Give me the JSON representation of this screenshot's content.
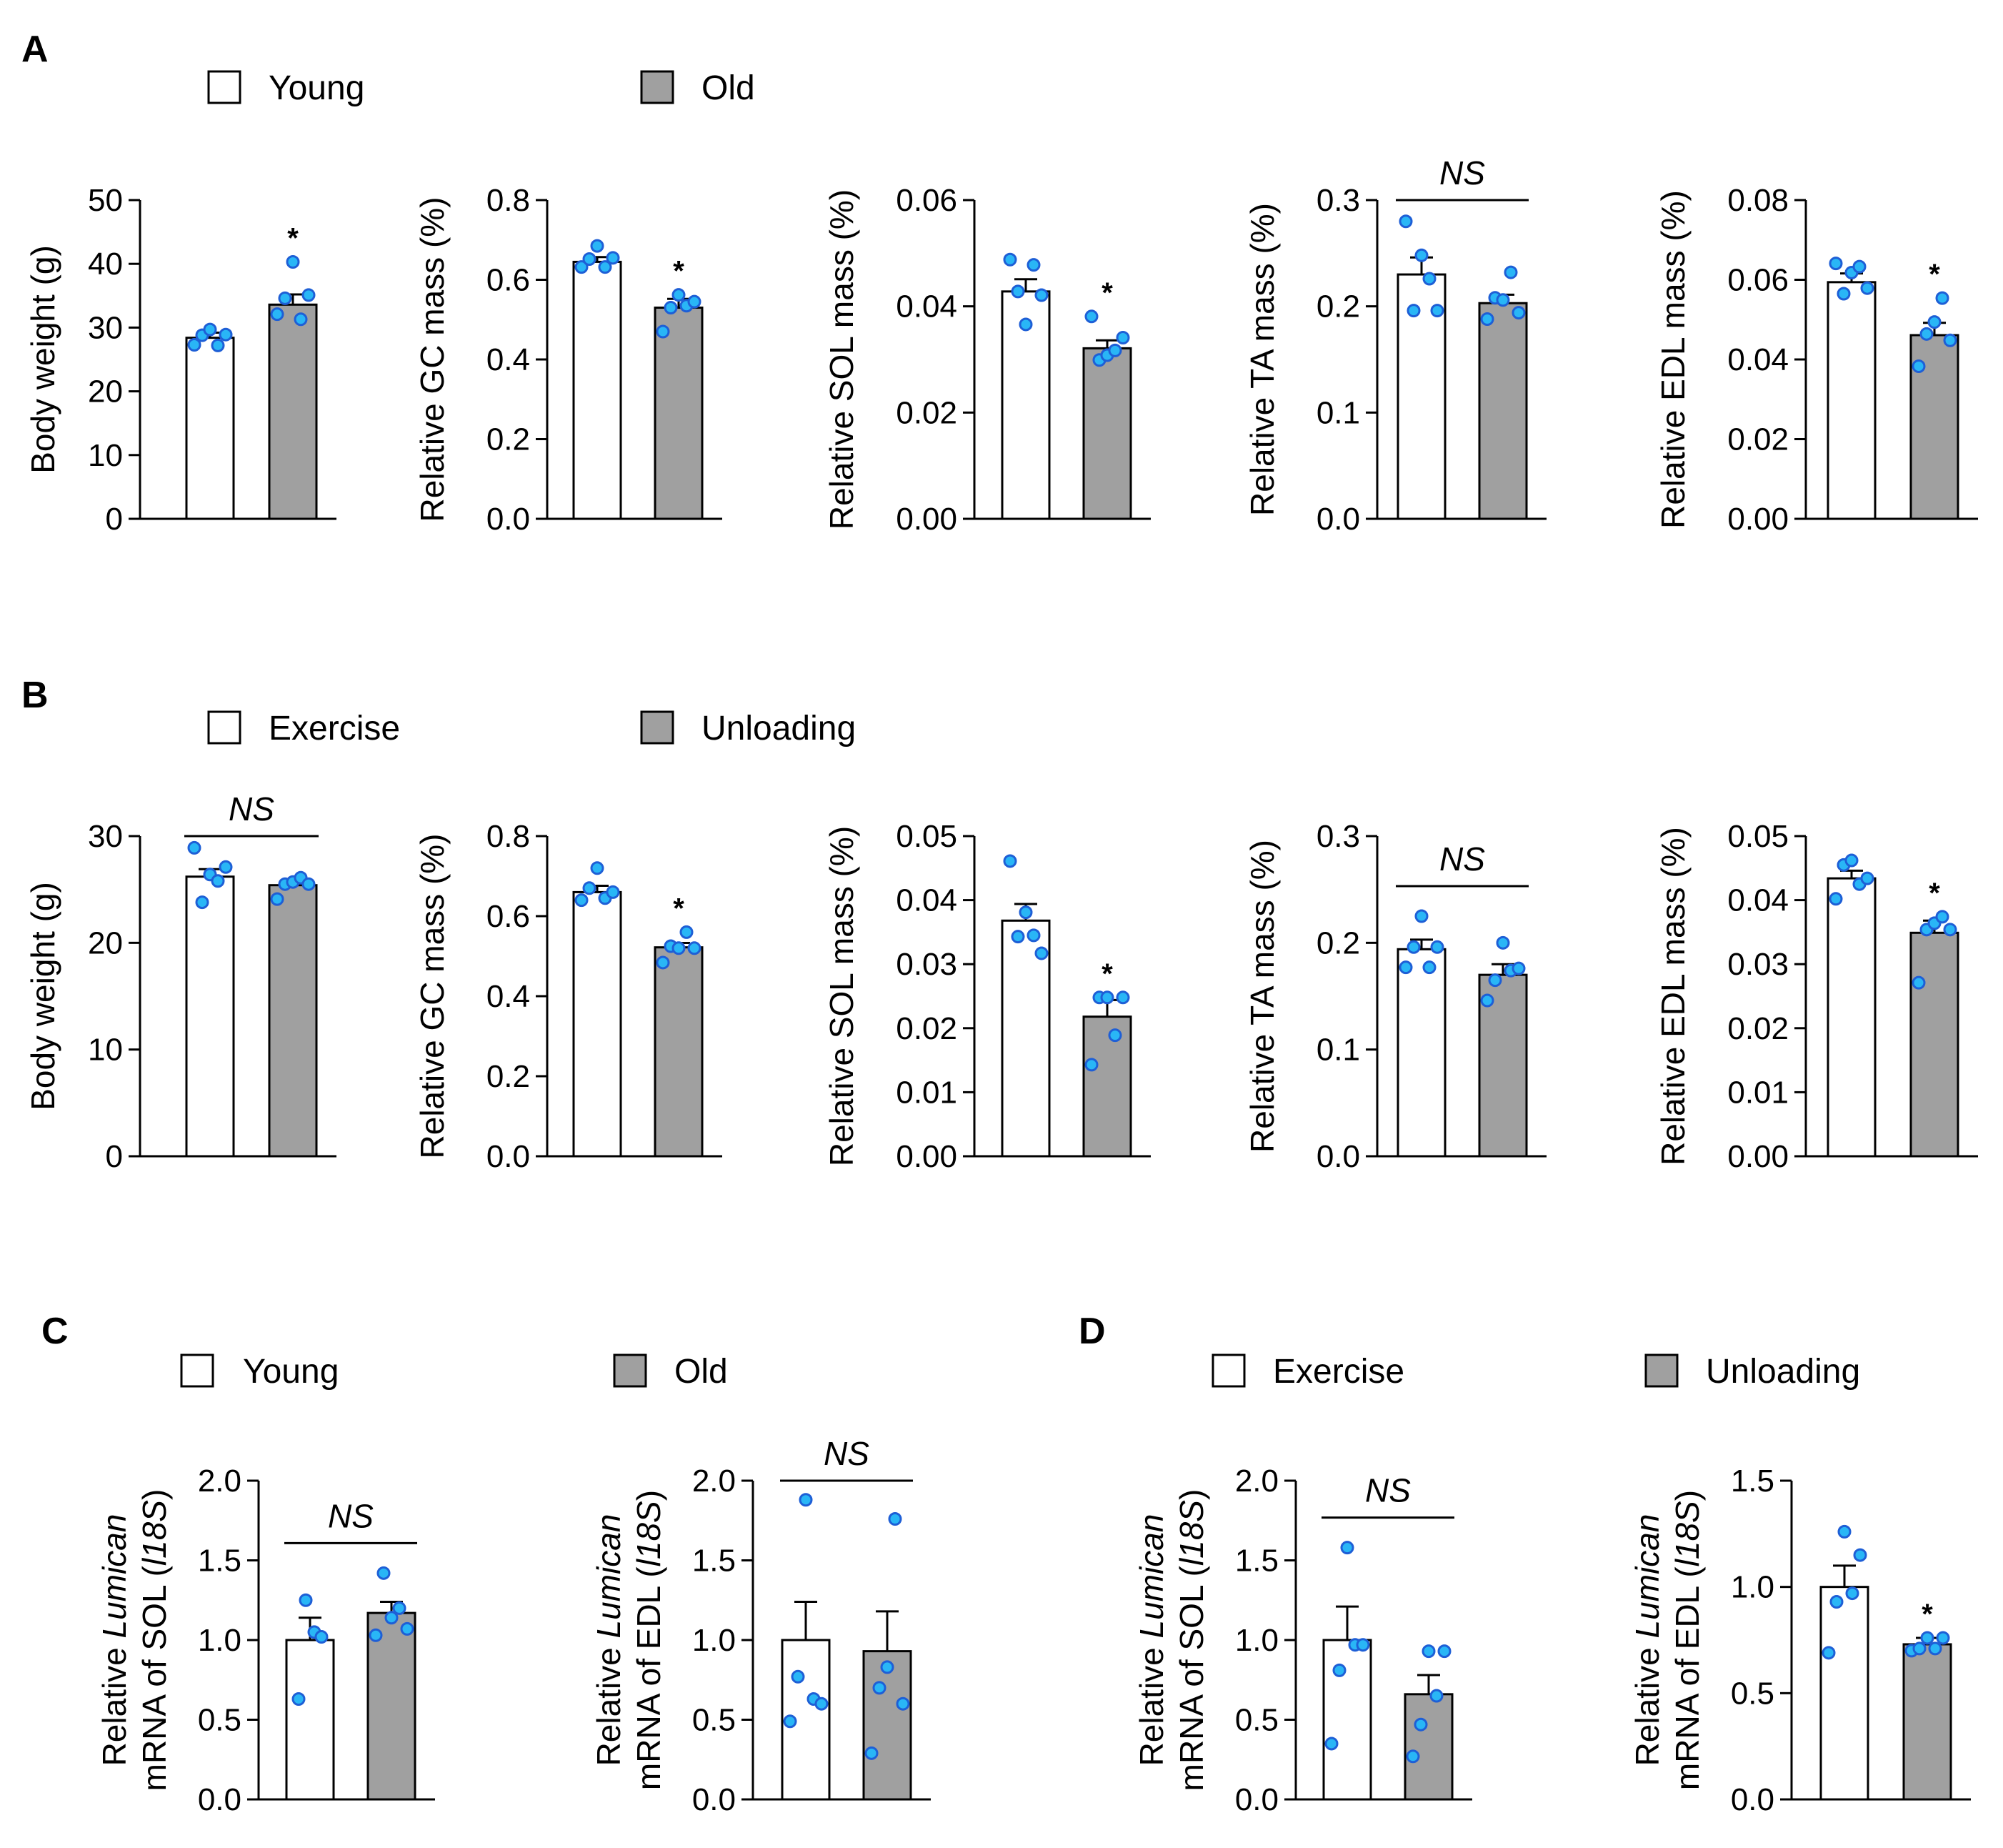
{
  "colors": {
    "young_bar": "#ffffff",
    "old_bar": "#a0a0a0",
    "axis": "#000000",
    "dot_fill": "#29b6f6",
    "dot_stroke": "#1e5fd6"
  },
  "panels": {
    "A": {
      "label": "A",
      "legend": [
        "Young",
        "Old"
      ]
    },
    "B": {
      "label": "B",
      "legend": [
        "Exercise",
        "Unloading"
      ]
    },
    "C": {
      "label": "C",
      "legend": [
        "Young",
        "Old"
      ]
    },
    "D": {
      "label": "D",
      "legend": [
        "Exercise",
        "Unloading"
      ]
    }
  },
  "chart_data": [
    {
      "id": "A1",
      "panel": "A",
      "type": "bar",
      "ylabel": "Body weight (g)",
      "ylim": [
        0,
        50
      ],
      "ticks": [
        "0",
        "10",
        "20",
        "30",
        "40",
        "50"
      ],
      "categories": [
        "Young",
        "Old"
      ],
      "values": [
        28.4,
        33.6
      ],
      "errors": [
        0.8,
        1.6
      ],
      "points": [
        [
          27.3,
          28.8,
          29.7,
          27.2,
          28.9
        ],
        [
          32.1,
          34.6,
          40.3,
          31.3,
          35.1
        ]
      ],
      "annotation": "*",
      "annotation_type": "star"
    },
    {
      "id": "A2",
      "panel": "A",
      "type": "bar",
      "ylabel": "Relative GC mass (%)",
      "ylim": [
        0,
        0.8
      ],
      "ticks": [
        "0.0",
        "0.2",
        "0.4",
        "0.6",
        "0.8"
      ],
      "categories": [
        "Young",
        "Old"
      ],
      "values": [
        0.645,
        0.53
      ],
      "errors": [
        0.012,
        0.022
      ],
      "points": [
        [
          0.632,
          0.652,
          0.685,
          0.632,
          0.655
        ],
        [
          0.47,
          0.53,
          0.562,
          0.535,
          0.545
        ]
      ],
      "annotation": "*",
      "annotation_type": "star"
    },
    {
      "id": "A3",
      "panel": "A",
      "type": "bar",
      "ylabel": "Relative SOL mass (%)",
      "ylim": [
        0,
        0.06
      ],
      "ticks": [
        "0.00",
        "0.02",
        "0.04",
        "0.06"
      ],
      "categories": [
        "Young",
        "Old"
      ],
      "values": [
        0.0428,
        0.0321
      ],
      "errors": [
        0.0023,
        0.0015
      ],
      "points": [
        [
          0.0488,
          0.0428,
          0.0366,
          0.0478,
          0.0421
        ],
        [
          0.0381,
          0.0299,
          0.0308,
          0.0317,
          0.0341
        ]
      ],
      "annotation": "*",
      "annotation_type": "star"
    },
    {
      "id": "A4",
      "panel": "A",
      "type": "bar",
      "ylabel": "Relative TA mass (%)",
      "ylim": [
        0,
        0.3
      ],
      "ticks": [
        "0.0",
        "0.1",
        "0.2",
        "0.3"
      ],
      "categories": [
        "Young",
        "Old"
      ],
      "values": [
        0.23,
        0.203
      ],
      "errors": [
        0.016,
        0.008
      ],
      "points": [
        [
          0.28,
          0.196,
          0.248,
          0.226,
          0.196
        ],
        [
          0.188,
          0.208,
          0.206,
          0.232,
          0.194
        ]
      ],
      "annotation": "NS",
      "annotation_type": "ns"
    },
    {
      "id": "A5",
      "panel": "A",
      "type": "bar",
      "ylabel": "Relative EDL mass (%)",
      "ylim": [
        0,
        0.08
      ],
      "ticks": [
        "0.00",
        "0.02",
        "0.04",
        "0.06",
        "0.08"
      ],
      "categories": [
        "Young",
        "Old"
      ],
      "values": [
        0.0594,
        0.0461
      ],
      "errors": [
        0.0022,
        0.0031
      ],
      "points": [
        [
          0.0641,
          0.0565,
          0.0618,
          0.0633,
          0.0579
        ],
        [
          0.0383,
          0.0464,
          0.0494,
          0.0554,
          0.0448
        ]
      ],
      "annotation": "*",
      "annotation_type": "star"
    },
    {
      "id": "B1",
      "panel": "B",
      "type": "bar",
      "ylabel": "Body weight (g)",
      "ylim": [
        0,
        30
      ],
      "ticks": [
        "0",
        "10",
        "20",
        "30"
      ],
      "categories": [
        "Exercise",
        "Unloading"
      ],
      "values": [
        26.2,
        25.4
      ],
      "errors": [
        0.7,
        0.4
      ],
      "points": [
        [
          28.9,
          23.8,
          26.4,
          25.8,
          27.1
        ],
        [
          24.1,
          25.5,
          25.7,
          26.1,
          25.5
        ]
      ],
      "annotation": "NS",
      "annotation_type": "ns"
    },
    {
      "id": "B2",
      "panel": "B",
      "type": "bar",
      "ylabel": "Relative GC mass (%)",
      "ylim": [
        0,
        0.8
      ],
      "ticks": [
        "0.0",
        "0.2",
        "0.4",
        "0.6",
        "0.8"
      ],
      "categories": [
        "Exercise",
        "Unloading"
      ],
      "values": [
        0.66,
        0.522
      ],
      "errors": [
        0.016,
        0.011
      ],
      "points": [
        [
          0.64,
          0.67,
          0.72,
          0.645,
          0.66
        ],
        [
          0.484,
          0.525,
          0.52,
          0.56,
          0.52
        ]
      ],
      "annotation": "*",
      "annotation_type": "star"
    },
    {
      "id": "B3",
      "panel": "B",
      "type": "bar",
      "ylabel": "Relative SOL mass (%)",
      "ylim": [
        0,
        0.05
      ],
      "ticks": [
        "0.00",
        "0.01",
        "0.02",
        "0.03",
        "0.04",
        "0.05"
      ],
      "categories": [
        "Exercise",
        "Unloading"
      ],
      "values": [
        0.0368,
        0.0218
      ],
      "errors": [
        0.0026,
        0.0026
      ],
      "points": [
        [
          0.0461,
          0.0343,
          0.0381,
          0.0345,
          0.0317
        ],
        [
          0.0143,
          0.0248,
          0.0248,
          0.0189,
          0.0248
        ]
      ],
      "annotation": "*",
      "annotation_type": "star"
    },
    {
      "id": "B4",
      "panel": "B",
      "type": "bar",
      "ylabel": "Relative TA mass (%)",
      "ylim": [
        0,
        0.3
      ],
      "ticks": [
        "0.0",
        "0.1",
        "0.2",
        "0.3"
      ],
      "categories": [
        "Exercise",
        "Unloading"
      ],
      "values": [
        0.194,
        0.17
      ],
      "errors": [
        0.009,
        0.01
      ],
      "points": [
        [
          0.177,
          0.196,
          0.225,
          0.177,
          0.196
        ],
        [
          0.146,
          0.165,
          0.2,
          0.174,
          0.176
        ]
      ],
      "annotation": "NS",
      "annotation_type": "ns"
    },
    {
      "id": "B5",
      "panel": "B",
      "type": "bar",
      "ylabel": "Relative EDL mass (%)",
      "ylim": [
        0,
        0.05
      ],
      "ticks": [
        "0.00",
        "0.01",
        "0.02",
        "0.03",
        "0.04",
        "0.05"
      ],
      "categories": [
        "Exercise",
        "Unloading"
      ],
      "values": [
        0.0434,
        0.0349
      ],
      "errors": [
        0.0012,
        0.0019
      ],
      "points": [
        [
          0.0402,
          0.0455,
          0.0462,
          0.0425,
          0.0434
        ],
        [
          0.0271,
          0.0354,
          0.0364,
          0.0374,
          0.0354
        ]
      ],
      "annotation": "*",
      "annotation_type": "star"
    },
    {
      "id": "C1",
      "panel": "C",
      "type": "bar",
      "ylabel": [
        "Relative ",
        "Lumican",
        "mRNA of SOL (",
        "l18S",
        ")"
      ],
      "ylim": [
        0,
        2.0
      ],
      "ticks": [
        "0.0",
        "0.5",
        "1.0",
        "1.5",
        "2.0"
      ],
      "categories": [
        "Young",
        "Old"
      ],
      "values": [
        1.0,
        1.17
      ],
      "errors": [
        0.14,
        0.07
      ],
      "points": [
        [
          0.63,
          1.25,
          1.05,
          1.02
        ],
        [
          1.03,
          1.42,
          1.14,
          1.2,
          1.07
        ]
      ],
      "annotation": "NS",
      "annotation_type": "ns"
    },
    {
      "id": "C2",
      "panel": "C",
      "type": "bar",
      "ylabel": [
        "Relative ",
        "Lumican",
        "mRNA of EDL (",
        "l18S",
        ")"
      ],
      "ylim": [
        0,
        2.0
      ],
      "ticks": [
        "0.0",
        "0.5",
        "1.0",
        "1.5",
        "2.0"
      ],
      "categories": [
        "Young",
        "Old"
      ],
      "values": [
        1.0,
        0.93
      ],
      "errors": [
        0.24,
        0.25
      ],
      "points": [
        [
          0.49,
          0.77,
          1.88,
          0.63,
          0.6
        ],
        [
          0.29,
          0.7,
          0.83,
          1.76,
          0.6
        ]
      ],
      "annotation": "NS",
      "annotation_type": "ns"
    },
    {
      "id": "D1",
      "panel": "D",
      "type": "bar",
      "ylabel": [
        "Relative ",
        "Lumican",
        "mRNA of SOL (",
        "l18S",
        ")"
      ],
      "ylim": [
        0,
        2.0
      ],
      "ticks": [
        "0.0",
        "0.5",
        "1.0",
        "1.5",
        "2.0"
      ],
      "categories": [
        "Exercise",
        "Unloading"
      ],
      "values": [
        1.0,
        0.66
      ],
      "errors": [
        0.21,
        0.12
      ],
      "points": [
        [
          0.35,
          0.81,
          1.58,
          0.97,
          0.97
        ],
        [
          0.27,
          0.47,
          0.93,
          0.65,
          0.93
        ]
      ],
      "annotation": "NS",
      "annotation_type": "ns"
    },
    {
      "id": "D2",
      "panel": "D",
      "type": "bar",
      "ylabel": [
        "Relative ",
        "Lumican",
        "mRNA of EDL (",
        "l18S",
        ")"
      ],
      "ylim": [
        0,
        1.5
      ],
      "ticks": [
        "0.0",
        "0.5",
        "1.0",
        "1.5"
      ],
      "categories": [
        "Exercise",
        "Unloading"
      ],
      "values": [
        1.0,
        0.73
      ],
      "errors": [
        0.1,
        0.03
      ],
      "points": [
        [
          0.69,
          0.93,
          1.26,
          0.97,
          1.15
        ],
        [
          0.7,
          0.71,
          0.76,
          0.71,
          0.76
        ]
      ],
      "annotation": "*",
      "annotation_type": "star"
    }
  ]
}
